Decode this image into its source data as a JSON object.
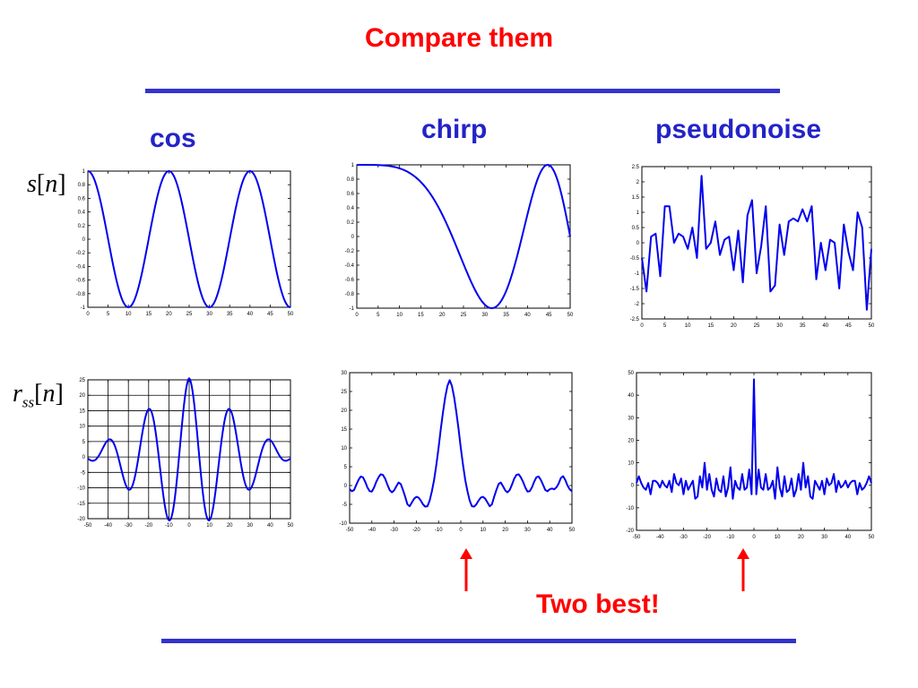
{
  "slide": {
    "title": "Compare them",
    "columns": [
      "cos",
      "chirp",
      "pseudonoise"
    ],
    "row_labels": {
      "signal": {
        "base": "s",
        "arg": "n"
      },
      "autocorr": {
        "base": "r",
        "sub": "ss",
        "arg": "n"
      }
    },
    "annotation": "Two best!",
    "colors": {
      "title": "#ff0000",
      "rule": "#3333cc",
      "label": "#2323c8",
      "series": "#0000ee",
      "arrow": "#ff0000"
    }
  },
  "chart_data": [
    {
      "id": "cos-signal",
      "type": "line",
      "xlim": [
        0,
        50
      ],
      "ylim": [
        -1,
        1
      ],
      "xticks": [
        0,
        5,
        10,
        15,
        20,
        25,
        30,
        35,
        40,
        45,
        50
      ],
      "yticks": [
        -1,
        -0.8,
        -0.6,
        -0.4,
        -0.2,
        0,
        0.2,
        0.4,
        0.6,
        0.8,
        1
      ],
      "grid": false,
      "formula": "cos(2*pi*n/20)"
    },
    {
      "id": "chirp-signal",
      "type": "line",
      "xlim": [
        0,
        50
      ],
      "ylim": [
        -1,
        1
      ],
      "xticks": [
        0,
        5,
        10,
        15,
        20,
        25,
        30,
        35,
        40,
        45,
        50
      ],
      "yticks": [
        -1,
        -0.8,
        -0.6,
        -0.4,
        -0.2,
        0,
        0.2,
        0.4,
        0.6,
        0.8,
        1
      ],
      "grid": false,
      "formula": "cos(pi*n^2/1000)"
    },
    {
      "id": "pn-signal",
      "type": "line",
      "xlim": [
        0,
        50
      ],
      "ylim": [
        -2.5,
        2.5
      ],
      "xticks": [
        0,
        5,
        10,
        15,
        20,
        25,
        30,
        35,
        40,
        45,
        50
      ],
      "yticks": [
        -2.5,
        -2,
        -1.5,
        -1,
        -0.5,
        0,
        0.5,
        1,
        1.5,
        2,
        2.5
      ],
      "grid": false,
      "values": [
        -0.5,
        -1.6,
        0.2,
        0.3,
        -1.1,
        1.2,
        1.2,
        0,
        0.3,
        0.2,
        -0.2,
        0.5,
        -0.5,
        2.2,
        -0.2,
        0,
        0.7,
        -0.4,
        0.1,
        0.2,
        -0.9,
        0.4,
        -1.3,
        0.9,
        1.4,
        -1.0,
        -0.1,
        1.2,
        -1.6,
        -1.4,
        0.6,
        -0.4,
        0.7,
        0.8,
        0.7,
        1.1,
        0.7,
        1.2,
        -1.2,
        0,
        -0.9,
        0.1,
        0,
        -1.5,
        0.6,
        -0.3,
        -0.9,
        1.0,
        0.5,
        -2.2,
        -0.2
      ]
    },
    {
      "id": "cos-autocorr",
      "type": "line",
      "xlim": [
        -50,
        50
      ],
      "ylim": [
        -20,
        25
      ],
      "xticks": [
        -50,
        -40,
        -30,
        -20,
        -10,
        0,
        10,
        20,
        30,
        40,
        50
      ],
      "yticks": [
        -20,
        -15,
        -10,
        -5,
        0,
        5,
        10,
        15,
        20,
        25
      ],
      "grid": true,
      "formula": "(51-|k|)/2*cos(2*pi*k/20)"
    },
    {
      "id": "chirp-autocorr",
      "type": "line",
      "xlim": [
        -50,
        50
      ],
      "ylim": [
        -10,
        30
      ],
      "xticks": [
        -50,
        -40,
        -30,
        -20,
        -10,
        0,
        10,
        20,
        30,
        40,
        50
      ],
      "yticks": [
        -10,
        -5,
        0,
        5,
        10,
        15,
        20,
        25,
        30
      ],
      "grid": false,
      "values": [
        -1,
        -1.5,
        -1.2,
        0.2,
        1.5,
        2.4,
        2.2,
        1,
        -0.5,
        -1.5,
        -1.6,
        -0.5,
        1,
        2.2,
        3,
        2.8,
        1.8,
        0.2,
        -1.2,
        -1.8,
        -1.3,
        -0.2,
        0.8,
        0.4,
        -1.2,
        -3,
        -5,
        -5.5,
        -4.5,
        -3.5,
        -3,
        -3.2,
        -4,
        -5,
        -5.6,
        -5.5,
        -4,
        -1.5,
        1.5,
        5.5,
        10,
        15,
        19.5,
        23.5,
        26.5,
        28,
        26.5,
        23.5,
        19.5,
        15,
        10,
        5.5,
        1.5,
        -1.5,
        -4,
        -5.5,
        -5.6,
        -5,
        -4,
        -3.2,
        -3,
        -3.5,
        -4.5,
        -5.5,
        -5,
        -3,
        -1.2,
        0.4,
        0.8,
        -0.2,
        -1.3,
        -1.8,
        -1.2,
        0.2,
        1.8,
        2.8,
        3,
        2.2,
        1,
        -0.5,
        -1.6,
        -1.5,
        -0.5,
        1,
        2.2,
        2.4,
        1.5,
        0.2,
        -1.2,
        -1.5,
        -1,
        -0.8,
        -1,
        -0.5,
        0.5,
        2,
        2.5,
        1.5,
        0,
        -1,
        -1.5
      ]
    },
    {
      "id": "pn-autocorr",
      "type": "line",
      "xlim": [
        -50,
        50
      ],
      "ylim": [
        -20,
        50
      ],
      "xticks": [
        -50,
        -40,
        -30,
        -20,
        -10,
        0,
        10,
        20,
        30,
        40,
        50
      ],
      "yticks": [
        -20,
        -10,
        0,
        10,
        20,
        30,
        40,
        50
      ],
      "grid": false,
      "values": [
        1,
        4,
        1,
        -1,
        -2,
        1,
        -4,
        2,
        2,
        1,
        -1,
        2,
        0,
        -1,
        2,
        -3,
        5,
        1,
        0,
        3,
        -4,
        2,
        -2,
        0,
        2,
        -6,
        -5,
        4,
        -1,
        10,
        -2,
        5,
        -2,
        -5,
        3,
        -2,
        -3,
        4,
        -5,
        -1,
        8,
        -6,
        2,
        -1,
        -2,
        5,
        -2,
        -1,
        7,
        -4,
        47,
        -4,
        7,
        -1,
        -2,
        5,
        -2,
        -1,
        2,
        -6,
        8,
        -1,
        -5,
        4,
        -3,
        -2,
        3,
        -5,
        -2,
        5,
        -2,
        10,
        -1,
        4,
        -5,
        -6,
        2,
        0,
        -2,
        2,
        -4,
        3,
        0,
        1,
        5,
        -3,
        2,
        -1,
        0,
        2,
        -1,
        1,
        2,
        2,
        -4,
        1,
        -2,
        -1,
        1,
        4,
        1
      ]
    }
  ]
}
